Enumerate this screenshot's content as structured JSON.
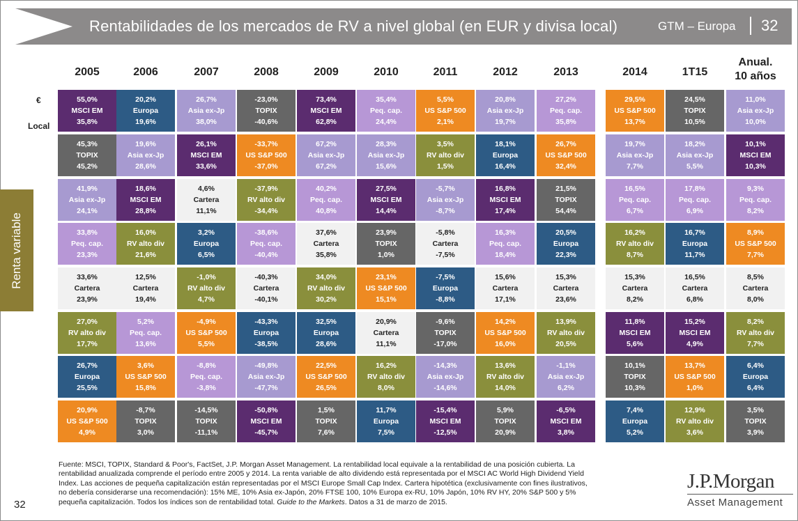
{
  "header": {
    "title": "Rentabilidades de los mercados de RV a nivel global (en EUR y divisa local)",
    "source_label": "GTM – Europa",
    "page": "32"
  },
  "side_label": "Renta variable",
  "row_labels": {
    "euro": "€",
    "local": "Local"
  },
  "colors": {
    "MSCI EM": "#5b2c6f",
    "Europa": "#2d5b85",
    "Asia ex-Jp": "#a79ad0",
    "TOPIX": "#666666",
    "Peq. cap.": "#b797d6",
    "US S&P 500": "#ee8a22",
    "RV alto div": "#8a8f3c",
    "Cartera": "#f1f1f1",
    "header_bar": "#8c8a8a",
    "side_tab": "#8c7d35"
  },
  "chart_data": {
    "type": "table",
    "title": "Rentabilidades de los mercados de RV a nivel global (en EUR y divisa local)",
    "columns": [
      "2005",
      "2006",
      "2007",
      "2008",
      "2009",
      "2010",
      "2011",
      "2012",
      "2013",
      "2014",
      "1T15",
      "Anual. 10 años"
    ],
    "rows": [
      [
        {
          "eur": "55,0%",
          "name": "MSCI EM",
          "local": "35,8%"
        },
        {
          "eur": "20,2%",
          "name": "Europa",
          "local": "19,6%"
        },
        {
          "eur": "26,7%",
          "name": "Asia ex-Jp",
          "local": "38,0%"
        },
        {
          "eur": "-23,0%",
          "name": "TOPIX",
          "local": "-40,6%"
        },
        {
          "eur": "73,4%",
          "name": "MSCI EM",
          "local": "62,8%"
        },
        {
          "eur": "35,4%",
          "name": "Peq. cap.",
          "local": "24,4%"
        },
        {
          "eur": "5,5%",
          "name": "US S&P 500",
          "local": "2,1%"
        },
        {
          "eur": "20,8%",
          "name": "Asia ex-Jp",
          "local": "19,7%"
        },
        {
          "eur": "27,2%",
          "name": "Peq. cap.",
          "local": "35,8%"
        },
        {
          "eur": "29,5%",
          "name": "US S&P 500",
          "local": "13,7%"
        },
        {
          "eur": "24,5%",
          "name": "TOPIX",
          "local": "10,5%"
        },
        {
          "eur": "11,0%",
          "name": "Asia ex-Jp",
          "local": "10,0%"
        }
      ],
      [
        {
          "eur": "45,3%",
          "name": "TOPIX",
          "local": "45,2%"
        },
        {
          "eur": "19,6%",
          "name": "Asia ex-Jp",
          "local": "28,6%"
        },
        {
          "eur": "26,1%",
          "name": "MSCI EM",
          "local": "33,6%"
        },
        {
          "eur": "-33,7%",
          "name": "US S&P 500",
          "local": "-37,0%"
        },
        {
          "eur": "67,2%",
          "name": "Asia ex-Jp",
          "local": "67,2%"
        },
        {
          "eur": "28,3%",
          "name": "Asia ex-Jp",
          "local": "15,6%"
        },
        {
          "eur": "3,5%",
          "name": "RV alto div",
          "local": "1,5%"
        },
        {
          "eur": "18,1%",
          "name": "Europa",
          "local": "16,4%"
        },
        {
          "eur": "26,7%",
          "name": "US S&P 500",
          "local": "32,4%"
        },
        {
          "eur": "19,7%",
          "name": "Asia ex-Jp",
          "local": "7,7%"
        },
        {
          "eur": "18,2%",
          "name": "Asia ex-Jp",
          "local": "5,5%"
        },
        {
          "eur": "10,1%",
          "name": "MSCI EM",
          "local": "10,3%"
        }
      ],
      [
        {
          "eur": "41,9%",
          "name": "Asia ex-Jp",
          "local": "24,1%"
        },
        {
          "eur": "18,6%",
          "name": "MSCI EM",
          "local": "28,8%"
        },
        {
          "eur": "4,6%",
          "name": "Cartera",
          "local": "11,1%"
        },
        {
          "eur": "-37,9%",
          "name": "RV alto div",
          "local": "-34,4%"
        },
        {
          "eur": "40,2%",
          "name": "Peq. cap.",
          "local": "40,8%"
        },
        {
          "eur": "27,5%",
          "name": "MSCI EM",
          "local": "14,4%"
        },
        {
          "eur": "-5,7%",
          "name": "Asia ex-Jp",
          "local": "-8,7%"
        },
        {
          "eur": "16,8%",
          "name": "MSCI EM",
          "local": "17,4%"
        },
        {
          "eur": "21,5%",
          "name": "TOPIX",
          "local": "54,4%"
        },
        {
          "eur": "16,5%",
          "name": "Peq. cap.",
          "local": "6,7%"
        },
        {
          "eur": "17,8%",
          "name": "Peq. cap.",
          "local": "6,9%"
        },
        {
          "eur": "9,3%",
          "name": "Peq. cap.",
          "local": "8,2%"
        }
      ],
      [
        {
          "eur": "33,8%",
          "name": "Peq. cap.",
          "local": "23,3%"
        },
        {
          "eur": "16,0%",
          "name": "RV alto div",
          "local": "21,6%"
        },
        {
          "eur": "3,2%",
          "name": "Europa",
          "local": "6,5%"
        },
        {
          "eur": "-38,6%",
          "name": "Peq. cap.",
          "local": "-40,4%"
        },
        {
          "eur": "37,6%",
          "name": "Cartera",
          "local": "35,8%"
        },
        {
          "eur": "23,9%",
          "name": "TOPIX",
          "local": "1,0%"
        },
        {
          "eur": "-5,8%",
          "name": "Cartera",
          "local": "-7,5%"
        },
        {
          "eur": "16,3%",
          "name": "Peq. cap.",
          "local": "18,4%"
        },
        {
          "eur": "20,5%",
          "name": "Europa",
          "local": "22,3%"
        },
        {
          "eur": "16,2%",
          "name": "RV alto div",
          "local": "8,7%"
        },
        {
          "eur": "16,7%",
          "name": "Europa",
          "local": "11,7%"
        },
        {
          "eur": "8,9%",
          "name": "US S&P 500",
          "local": "7,7%"
        }
      ],
      [
        {
          "eur": "33,6%",
          "name": "Cartera",
          "local": "23,9%"
        },
        {
          "eur": "12,5%",
          "name": "Cartera",
          "local": "19,4%"
        },
        {
          "eur": "-1,0%",
          "name": "RV alto div",
          "local": "4,7%"
        },
        {
          "eur": "-40,3%",
          "name": "Cartera",
          "local": "-40,1%"
        },
        {
          "eur": "34,0%",
          "name": "RV alto div",
          "local": "30,2%"
        },
        {
          "eur": "23,1%",
          "name": "US S&P 500",
          "local": "15,1%"
        },
        {
          "eur": "-7,5%",
          "name": "Europa",
          "local": "-8,8%"
        },
        {
          "eur": "15,6%",
          "name": "Cartera",
          "local": "17,1%"
        },
        {
          "eur": "15,3%",
          "name": "Cartera",
          "local": "23,6%"
        },
        {
          "eur": "15,3%",
          "name": "Cartera",
          "local": "8,2%"
        },
        {
          "eur": "16,5%",
          "name": "Cartera",
          "local": "6,8%"
        },
        {
          "eur": "8,5%",
          "name": "Cartera",
          "local": "8,0%"
        }
      ],
      [
        {
          "eur": "27,0%",
          "name": "RV alto div",
          "local": "17,7%"
        },
        {
          "eur": "5,2%",
          "name": "Peq. cap.",
          "local": "13,6%"
        },
        {
          "eur": "-4,9%",
          "name": "US S&P 500",
          "local": "5,5%"
        },
        {
          "eur": "-43,3%",
          "name": "Europa",
          "local": "-38,5%"
        },
        {
          "eur": "32,5%",
          "name": "Europa",
          "local": "28,6%"
        },
        {
          "eur": "20,9%",
          "name": "Cartera",
          "local": "11,1%"
        },
        {
          "eur": "-9,6%",
          "name": "TOPIX",
          "local": "-17,0%"
        },
        {
          "eur": "14,2%",
          "name": "US S&P 500",
          "local": "16,0%"
        },
        {
          "eur": "13,9%",
          "name": "RV alto div",
          "local": "20,5%"
        },
        {
          "eur": "11,8%",
          "name": "MSCI EM",
          "local": "5,6%"
        },
        {
          "eur": "15,2%",
          "name": "MSCI EM",
          "local": "4,9%"
        },
        {
          "eur": "8,2%",
          "name": "RV alto div",
          "local": "7,7%"
        }
      ],
      [
        {
          "eur": "26,7%",
          "name": "Europa",
          "local": "25,5%"
        },
        {
          "eur": "3,6%",
          "name": "US S&P 500",
          "local": "15,8%"
        },
        {
          "eur": "-8,8%",
          "name": "Peq. cap.",
          "local": "-3,8%"
        },
        {
          "eur": "-49,8%",
          "name": "Asia ex-Jp",
          "local": "-47,7%"
        },
        {
          "eur": "22,5%",
          "name": "US S&P 500",
          "local": "26,5%"
        },
        {
          "eur": "16,2%",
          "name": "RV alto div",
          "local": "8,0%"
        },
        {
          "eur": "-14,3%",
          "name": "Asia ex-Jp",
          "local": "-14,6%"
        },
        {
          "eur": "13,6%",
          "name": "RV alto div",
          "local": "14,0%"
        },
        {
          "eur": "-1,1%",
          "name": "Asia ex-Jp",
          "local": "6,2%"
        },
        {
          "eur": "10,1%",
          "name": "TOPIX",
          "local": "10,3%"
        },
        {
          "eur": "13,7%",
          "name": "US S&P 500",
          "local": "1,0%"
        },
        {
          "eur": "6,4%",
          "name": "Europa",
          "local": "6,4%"
        }
      ],
      [
        {
          "eur": "20,9%",
          "name": "US S&P 500",
          "local": "4,9%"
        },
        {
          "eur": "-8,7%",
          "name": "TOPIX",
          "local": "3,0%"
        },
        {
          "eur": "-14,5%",
          "name": "TOPIX",
          "local": "-11,1%"
        },
        {
          "eur": "-50,8%",
          "name": "MSCI EM",
          "local": "-45,7%"
        },
        {
          "eur": "1,5%",
          "name": "TOPIX",
          "local": "7,6%"
        },
        {
          "eur": "11,7%",
          "name": "Europa",
          "local": "7,5%"
        },
        {
          "eur": "-15,4%",
          "name": "MSCI EM",
          "local": "-12,5%"
        },
        {
          "eur": "5,9%",
          "name": "TOPIX",
          "local": "20,9%"
        },
        {
          "eur": "-6,5%",
          "name": "MSCI EM",
          "local": "3,8%"
        },
        {
          "eur": "7,4%",
          "name": "Europa",
          "local": "5,2%"
        },
        {
          "eur": "12,9%",
          "name": "RV alto div",
          "local": "3,6%"
        },
        {
          "eur": "3,5%",
          "name": "TOPIX",
          "local": "3,9%"
        }
      ]
    ]
  },
  "footnote": {
    "line1": "Fuente: MSCI, TOPIX, Standard & Poor's, FactSet, J.P. Morgan Asset Management. La rentabilidad local equivale a la rentabilidad de una posición cubierta. La",
    "line2": "rentabilidad anualizada comprende el período entre 2005 y 2014. La renta variable de alto dividendo está representada por el MSCI AC World High Dividend Yield",
    "line3": "Index. Las acciones de pequeña capitalización están representadas por el MSCI Europe Small Cap Index. Cartera hipotética (exclusivamente con fines ilustrativos,",
    "line4": "no debería considerarse una recomendación): 15% ME, 10% Asia ex-Japón, 20% FTSE 100, 10% Europa ex-RU, 10% Japón, 10% RV HY, 20% S&P 500 y 5%",
    "line5a": "pequeña capitalización. Todos los índices son de rentabilidad total.",
    "line5b": "Guide to the Markets",
    "line5c": ". Datos a 31 de marzo de 2015."
  },
  "page_number_bottom": "32",
  "logo": {
    "name": "J.P.Morgan",
    "sub": "Asset Management"
  }
}
